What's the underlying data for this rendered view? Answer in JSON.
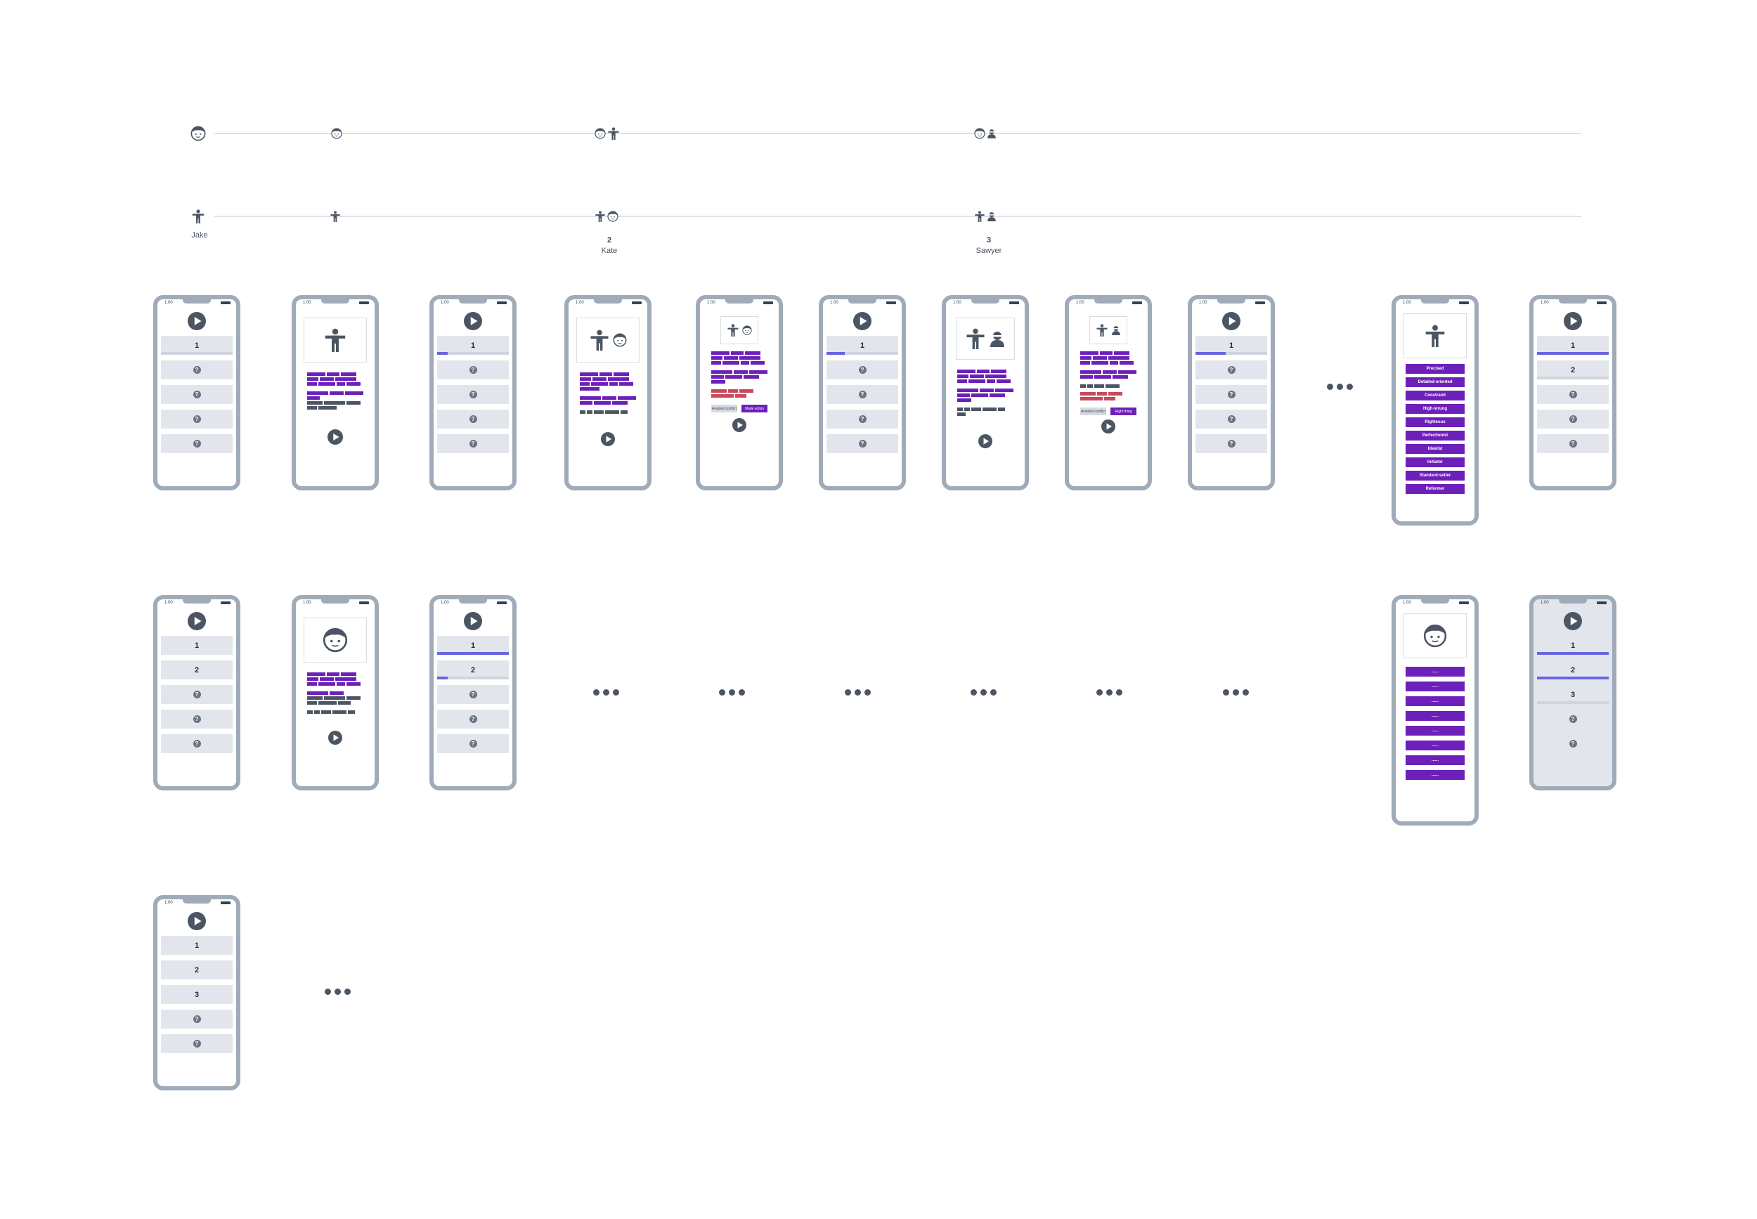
{
  "phone_time": "1:00",
  "timeline_top": {
    "nodes": [
      {
        "icons": [
          "face-icon"
        ]
      },
      {
        "icons": [
          "face-icon"
        ]
      },
      {
        "icons": [
          "face-icon",
          "body-icon"
        ]
      },
      {
        "icons": [
          "face-icon",
          "person-icon"
        ]
      }
    ]
  },
  "timeline_bottom": {
    "nodes": [
      {
        "icons": [
          "body-icon"
        ],
        "label": "Jake"
      },
      {
        "icons": [
          "body-icon"
        ]
      },
      {
        "icons": [
          "body-icon",
          "face-icon"
        ],
        "number": "2",
        "label": "Kate"
      },
      {
        "icons": [
          "body-icon",
          "person-icon"
        ],
        "number": "3",
        "label": "Sawyer"
      }
    ]
  },
  "row1": {
    "p3_row": "1",
    "p4_btn_left": "Avoided conflict",
    "p4_btn_right": "Made action",
    "p6_row": "1",
    "p8_btn_left": "Avoided conflict",
    "p8_btn_right": "Right thing",
    "p9_row": "1",
    "traits": [
      "Precised",
      "Detailed-oriented",
      "Constraint",
      "High-strung",
      "Righteous",
      "Perfectionist",
      "Idealist",
      "Initiator",
      "Standard-setter",
      "Reformer"
    ],
    "p11_rows": [
      "1",
      "2"
    ]
  },
  "p1_rows": [
    "1"
  ],
  "row2": {
    "p1_rows": [
      "1",
      "2"
    ],
    "p3_rows": [
      "1",
      "2"
    ],
    "trait_placeholders": [
      "......",
      "......",
      "......",
      "......",
      "......",
      "......",
      "......",
      "......"
    ],
    "p5_rows": [
      "1",
      "2",
      "3"
    ]
  },
  "row3": {
    "p1_rows": [
      "1",
      "2",
      "3"
    ]
  },
  "colors": {
    "accent": "#6d1fba",
    "progress": "#6864e2",
    "frame": "#a0abb9",
    "cell": "#e2e6ec",
    "warning": "#c84a5a"
  }
}
